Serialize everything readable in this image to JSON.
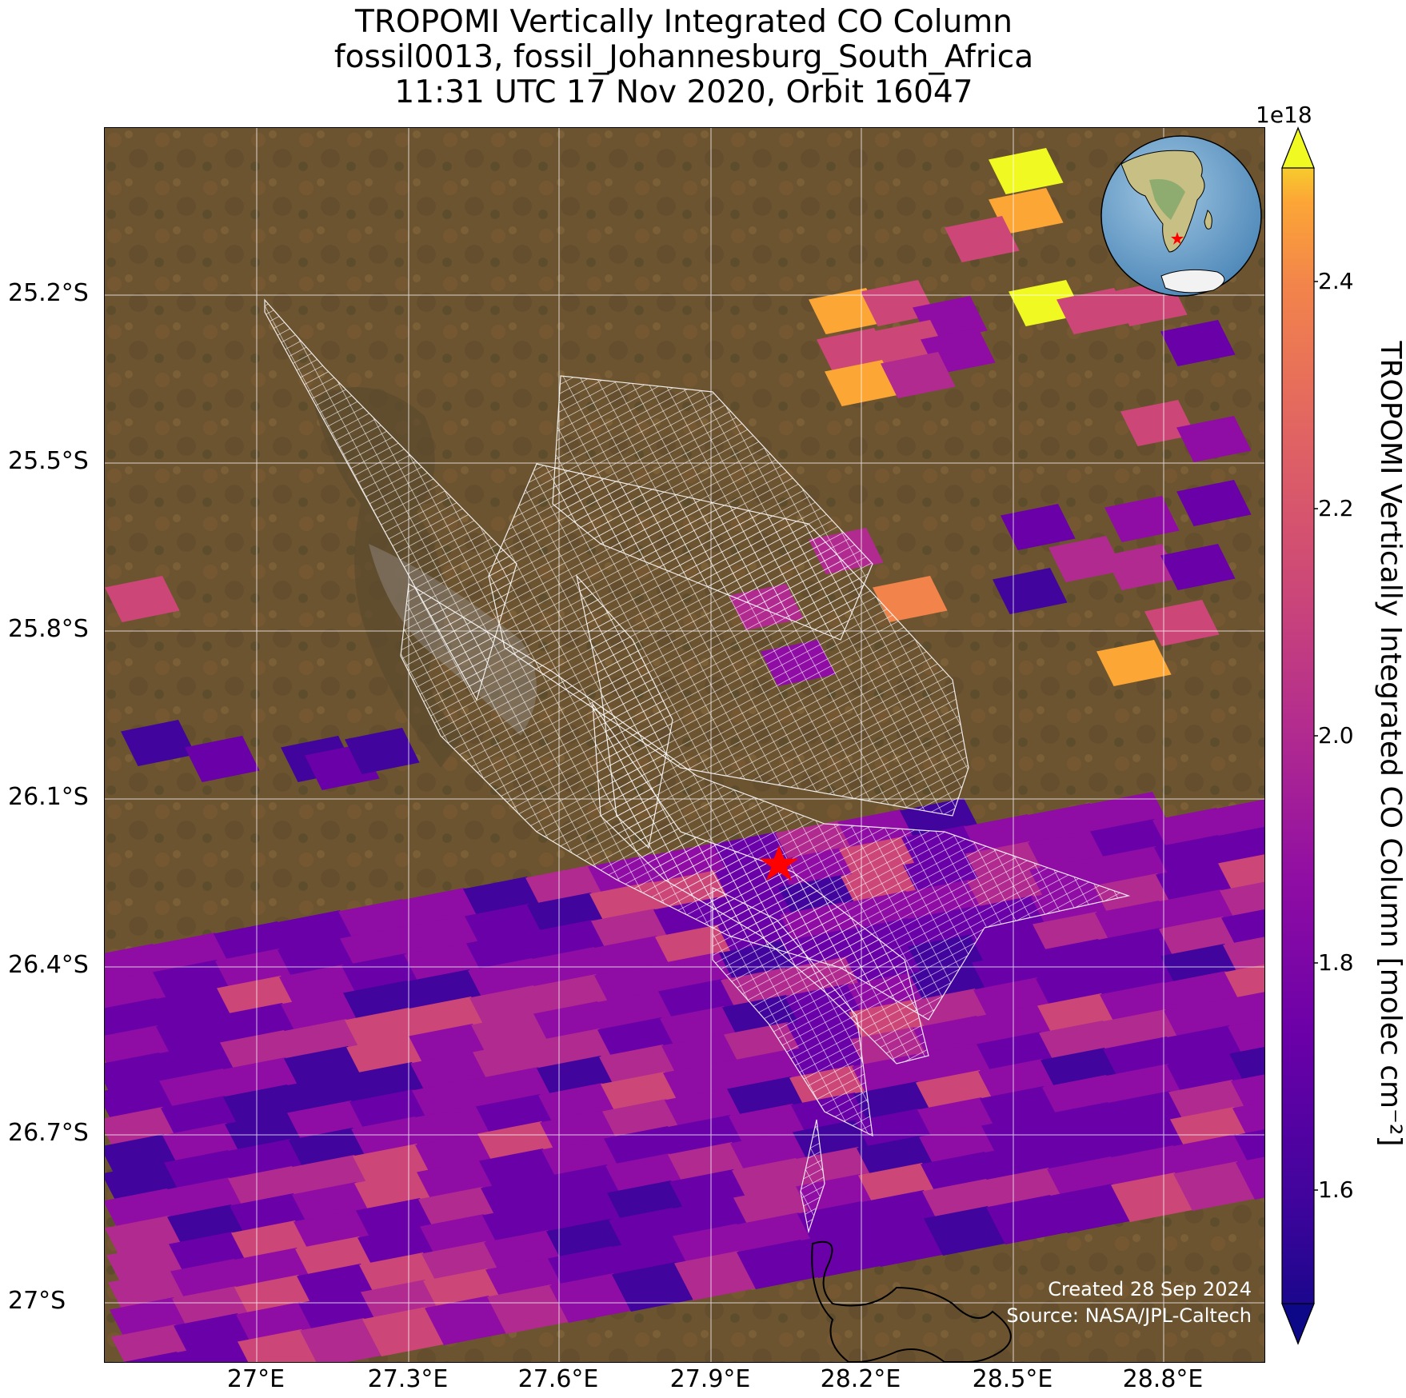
{
  "title": {
    "line1": "TROPOMI Vertically Integrated CO Column",
    "line2": "fossil0013, fossil_Johannesburg_South_Africa",
    "line3": "11:31 UTC 17 Nov 2020, Orbit 16047"
  },
  "axes": {
    "lat_ticks": [
      "25.2°S",
      "25.5°S",
      "25.8°S",
      "26.1°S",
      "26.4°S",
      "26.7°S",
      "27°S"
    ],
    "lon_ticks": [
      "27°E",
      "27.3°E",
      "27.6°E",
      "27.9°E",
      "28.2°E",
      "28.5°E",
      "28.8°E"
    ]
  },
  "colorbar": {
    "exponent": "1e18",
    "label": "TROPOMI Vertically Integrated CO Column [molec cm⁻²]",
    "ticks": [
      "1.6",
      "1.8",
      "2.0",
      "2.2",
      "2.4"
    ],
    "range": [
      1.5,
      2.5
    ],
    "colormap": "plasma"
  },
  "site": {
    "name": "fossil_Johannesburg_South_Africa",
    "marker": "red-star",
    "lon": 28.03,
    "lat": -26.2,
    "color": "#ff0000"
  },
  "inset": {
    "type": "globe",
    "marker": "red-star"
  },
  "footer": {
    "created": "Created 28 Sep 2024",
    "source": "Source: NASA/JPL-Caltech"
  },
  "colors": {
    "background_map": "#6e5532",
    "grid": "#ffffff",
    "target_outline": "#ffffff",
    "site_marker": "#ff0000"
  }
}
